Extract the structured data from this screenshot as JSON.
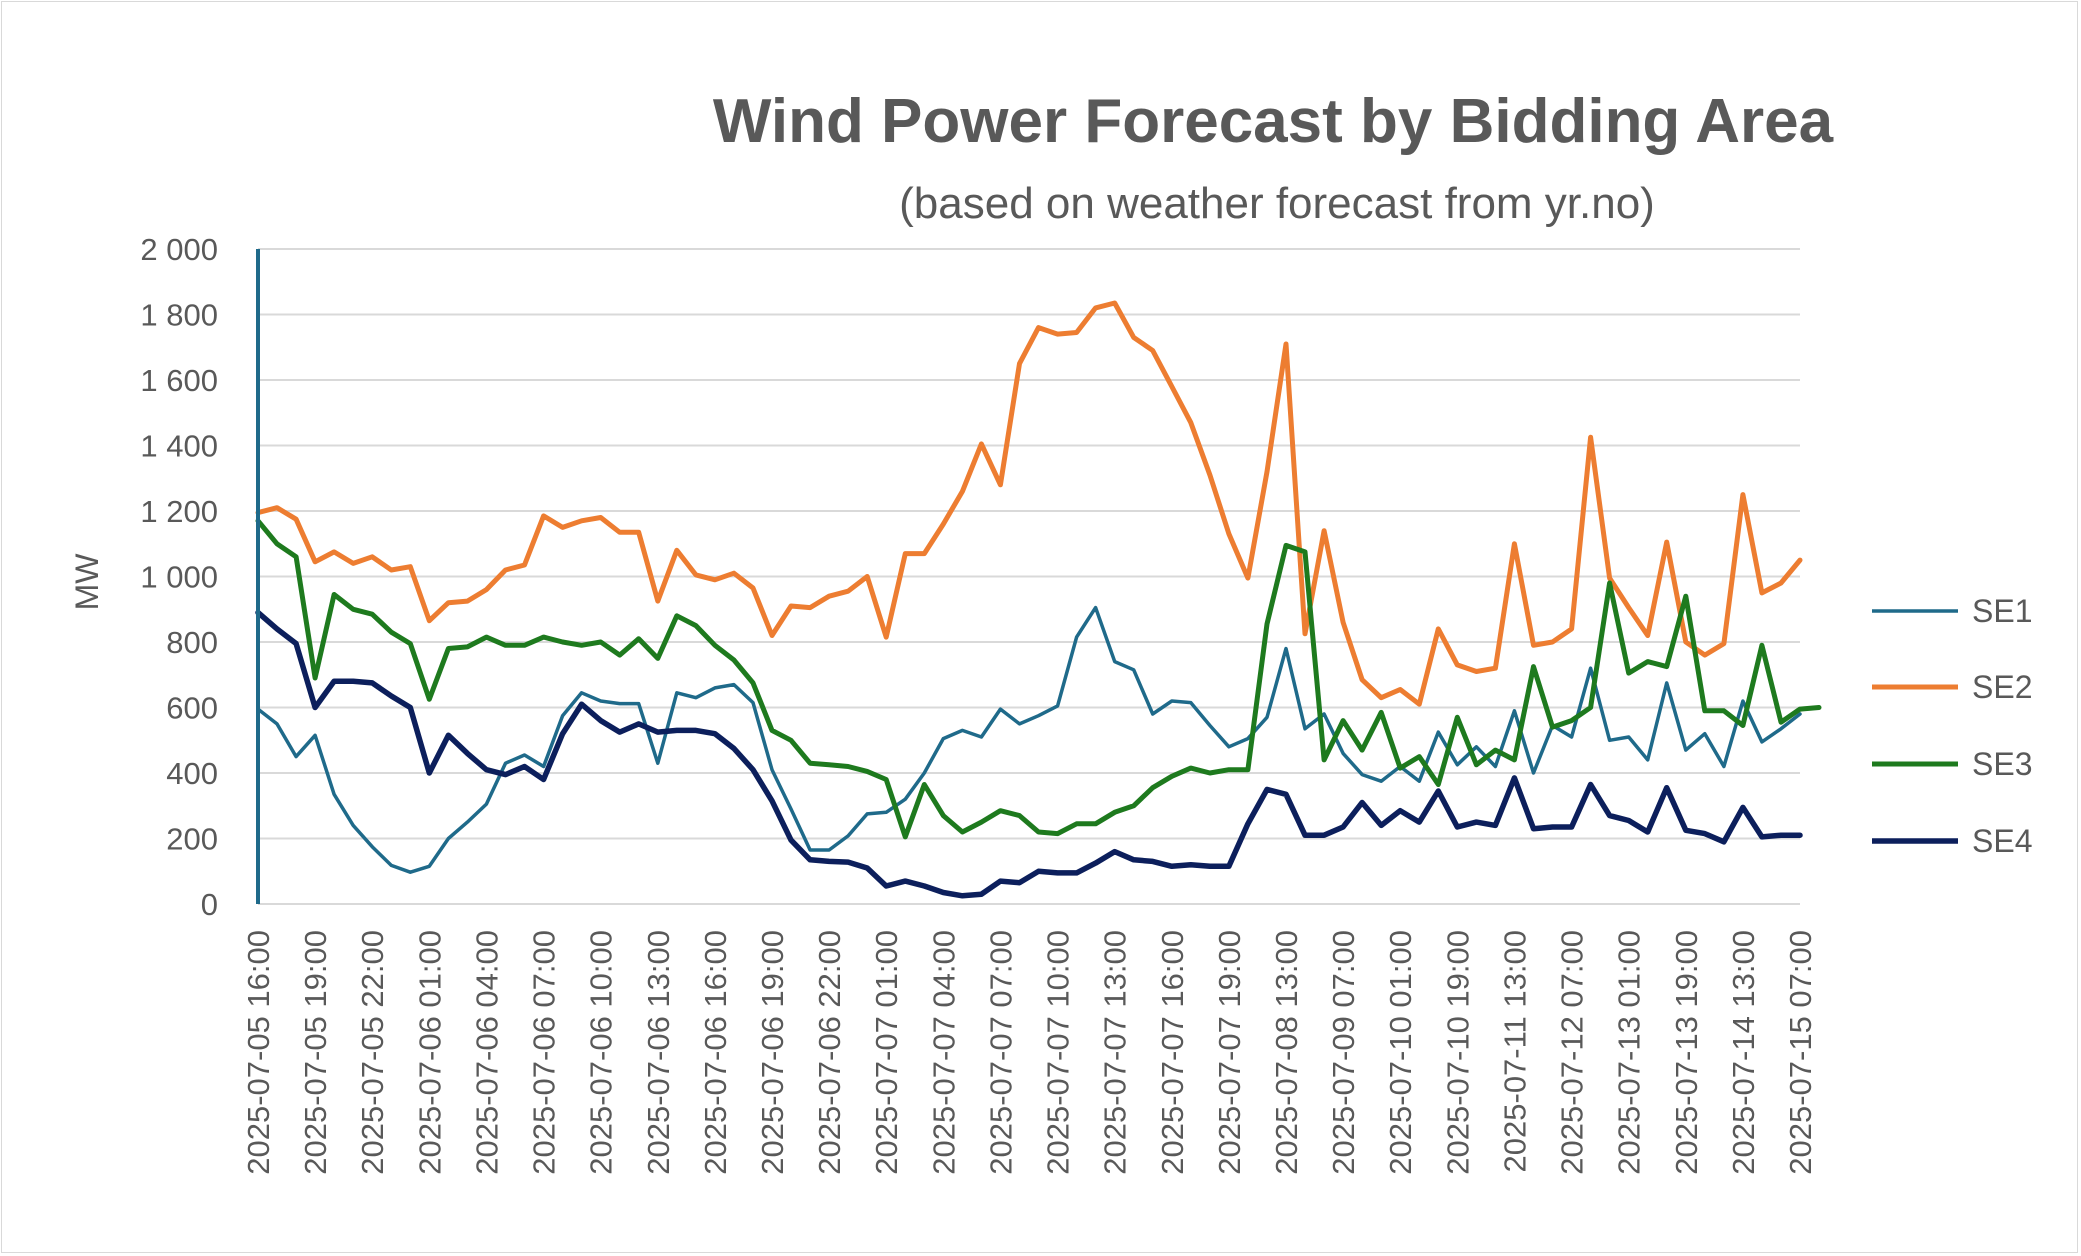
{
  "chart_data": {
    "type": "line",
    "title": "Wind Power Forecast by Bidding Area",
    "subtitle": "(based on weather forecast from yr.no)",
    "ylabel": "MW",
    "ylim": [
      0,
      2000
    ],
    "yticks": [
      0,
      200,
      400,
      600,
      800,
      1000,
      1200,
      1400,
      1600,
      1800,
      2000
    ],
    "ytick_labels": [
      "0",
      "200",
      "400",
      "600",
      "800",
      "1 000",
      "1 200",
      "1 400",
      "1 600",
      "1 800",
      "2 000"
    ],
    "grid": true,
    "legend_position": "right",
    "x_tick_labels": [
      "2025-07-05 16:00",
      "2025-07-05 19:00",
      "2025-07-05 22:00",
      "2025-07-06 01:00",
      "2025-07-06 04:00",
      "2025-07-06 07:00",
      "2025-07-06 10:00",
      "2025-07-06 13:00",
      "2025-07-06 16:00",
      "2025-07-06 19:00",
      "2025-07-06 22:00",
      "2025-07-07 01:00",
      "2025-07-07 04:00",
      "2025-07-07 07:00",
      "2025-07-07 10:00",
      "2025-07-07 13:00",
      "2025-07-07 16:00",
      "2025-07-07 19:00",
      "2025-07-08 13:00",
      "2025-07-09 07:00",
      "2025-07-10 01:00",
      "2025-07-10 19:00",
      "2025-07-11 13:00",
      "2025-07-12 07:00",
      "2025-07-13 01:00",
      "2025-07-13 19:00",
      "2025-07-14 13:00",
      "2025-07-15 07:00"
    ],
    "series": [
      {
        "name": "SE1",
        "color": "#1f6a8a",
        "values": [
          595,
          550,
          450,
          515,
          335,
          240,
          175,
          118,
          97,
          115,
          200,
          250,
          305,
          430,
          455,
          420,
          575,
          645,
          620,
          612,
          612,
          430,
          645,
          630,
          660,
          670,
          615,
          410,
          290,
          165,
          165,
          208,
          275,
          280,
          320,
          400,
          505,
          530,
          510,
          595,
          550,
          575,
          605,
          815,
          905,
          740,
          715,
          580,
          620,
          615,
          545,
          480,
          505,
          570,
          780,
          535,
          580,
          460,
          395,
          375,
          420,
          375,
          525,
          425,
          480,
          420,
          590,
          400,
          545,
          510,
          720,
          500,
          510,
          440,
          675,
          470,
          520,
          420,
          620,
          495,
          535,
          580
        ]
      },
      {
        "name": "SE2",
        "color": "#ed7d31",
        "values": [
          1195,
          1210,
          1175,
          1045,
          1075,
          1040,
          1060,
          1020,
          1030,
          865,
          920,
          925,
          960,
          1020,
          1035,
          1185,
          1150,
          1170,
          1180,
          1135,
          1135,
          925,
          1080,
          1005,
          990,
          1010,
          965,
          820,
          910,
          905,
          940,
          955,
          1000,
          815,
          1070,
          1070,
          1160,
          1260,
          1405,
          1280,
          1650,
          1760,
          1740,
          1745,
          1820,
          1835,
          1730,
          1690,
          1580,
          1470,
          1310,
          1130,
          995,
          1320,
          1710,
          825,
          1140,
          860,
          685,
          630,
          655,
          610,
          840,
          730,
          710,
          720,
          1100,
          790,
          800,
          840,
          1425,
          995,
          905,
          820,
          1105,
          800,
          760,
          795,
          1250,
          950,
          980,
          1050
        ]
      },
      {
        "name": "SE3",
        "color": "#1e7a1e",
        "values": [
          1170,
          1100,
          1060,
          690,
          945,
          900,
          885,
          830,
          795,
          625,
          780,
          785,
          815,
          790,
          790,
          815,
          800,
          790,
          800,
          760,
          810,
          750,
          880,
          850,
          790,
          745,
          675,
          530,
          500,
          430,
          425,
          420,
          405,
          380,
          205,
          365,
          270,
          220,
          250,
          285,
          270,
          220,
          215,
          245,
          245,
          280,
          300,
          355,
          390,
          415,
          400,
          410,
          410,
          855,
          1095,
          1075,
          440,
          560,
          470,
          585,
          415,
          450,
          365,
          570,
          425,
          470,
          440,
          725,
          540,
          560,
          600,
          980,
          705,
          740,
          725,
          940,
          590,
          590,
          545,
          790,
          555,
          595,
          600
        ]
      },
      {
        "name": "SE4",
        "color": "#0c1f5c",
        "values": [
          890,
          840,
          795,
          600,
          680,
          680,
          675,
          635,
          600,
          400,
          515,
          460,
          410,
          395,
          420,
          380,
          520,
          610,
          560,
          525,
          550,
          525,
          530,
          530,
          520,
          475,
          410,
          315,
          195,
          135,
          130,
          128,
          110,
          55,
          70,
          55,
          35,
          25,
          30,
          70,
          65,
          100,
          95,
          95,
          125,
          160,
          135,
          130,
          115,
          120,
          115,
          115,
          245,
          350,
          335,
          210,
          210,
          235,
          310,
          240,
          285,
          250,
          345,
          235,
          250,
          240,
          385,
          230,
          235,
          235,
          365,
          270,
          255,
          220,
          355,
          225,
          215,
          190,
          295,
          205,
          210,
          210
        ]
      }
    ]
  }
}
